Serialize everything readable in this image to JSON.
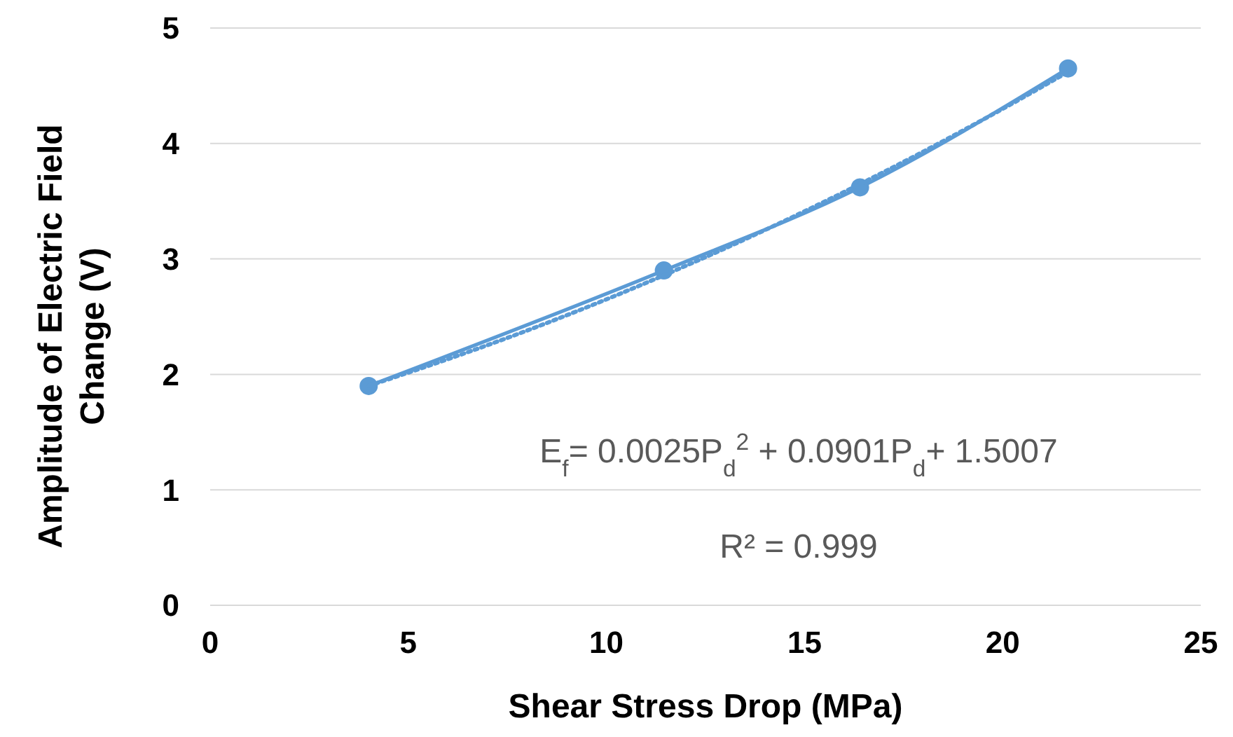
{
  "chart_data": {
    "type": "line",
    "xlabel": "Shear Stress Drop (MPa)",
    "ylabel": "Amplitude of Electric Field Change (V)",
    "xlim": [
      0,
      25
    ],
    "xticks": [
      0,
      5,
      10,
      15,
      20,
      25
    ],
    "ylim": [
      0,
      5
    ],
    "yticks": [
      0,
      1,
      2,
      3,
      4,
      5
    ],
    "grid": "y",
    "series": [
      {
        "color": "#5b9bd5",
        "x": [
          4.0,
          11.45,
          16.4,
          21.65
        ],
        "values": [
          1.9,
          2.9,
          3.62,
          4.65
        ],
        "marker": "circle",
        "line_style": "solid"
      },
      {
        "type": "line",
        "color": "#5b9bd5",
        "x": [
          4,
          8,
          12,
          16,
          20,
          21.65
        ],
        "values": [
          1.9,
          2.38,
          2.94,
          3.58,
          4.3,
          4.62
        ],
        "marker": "none",
        "line_style": "dotted"
      }
    ],
    "annotations": [
      "E$_{f}$= 0.0025P$_{d}$$^{2}$ + 0.0901P$_{d}$+ 1.5007",
      "R² = 0.999"
    ]
  }
}
